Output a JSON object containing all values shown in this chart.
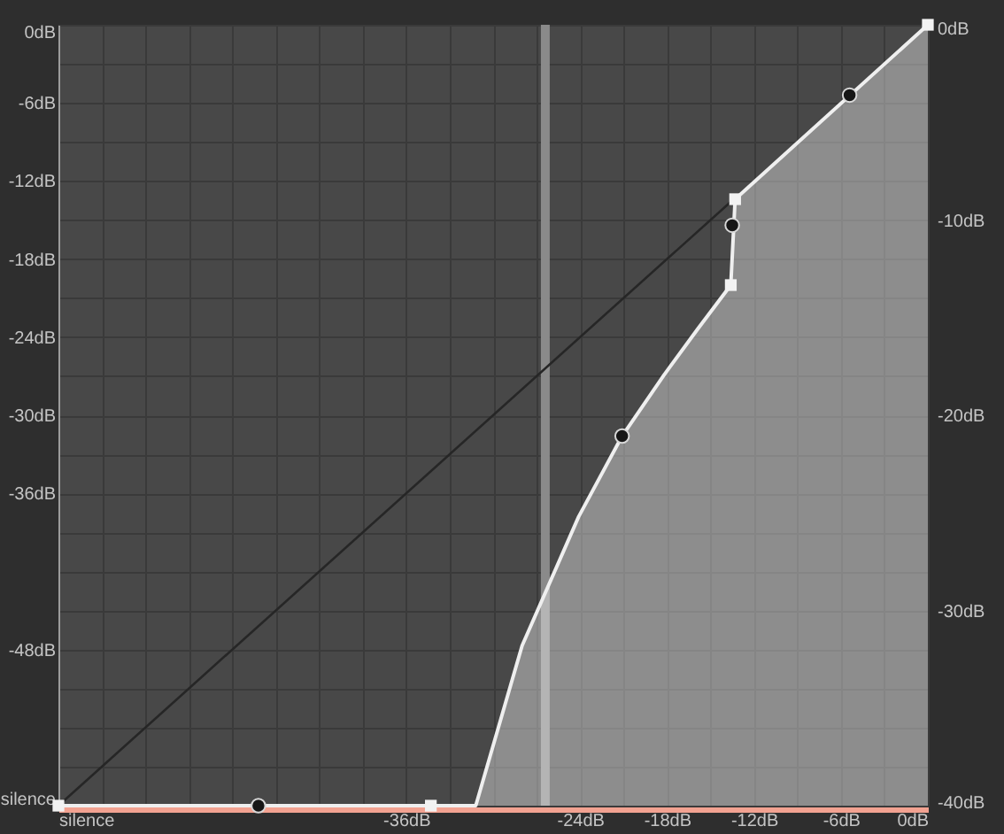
{
  "chart_data": {
    "type": "line",
    "x": [
      -60,
      -34.3,
      -31.2,
      -28.0,
      -24.1,
      -21.1,
      -18.2,
      -15.9,
      -13.6,
      -13.3,
      0
    ],
    "series": [
      {
        "x": [
          -60,
          -13.3
        ],
        "values": [
          -60,
          -13.3
        ],
        "color": "#262626",
        "marker": "none"
      },
      {
        "values": [
          -60,
          -60,
          -60,
          -47.7,
          -37.8,
          -31.6,
          -26.9,
          -23.4,
          -20.0,
          -13.4,
          0
        ],
        "lower": [
          -60,
          -60,
          -60,
          -60,
          -60,
          -60,
          -60,
          -60,
          -60,
          -60,
          -60
        ],
        "upper": [
          -60,
          -60,
          -60,
          -47.7,
          -37.8,
          -31.6,
          -26.9,
          -23.4,
          -20.0,
          -13.4,
          0
        ],
        "color": "#efefef",
        "marker": "none"
      },
      {
        "type": "scatter",
        "x": [
          -60,
          -34.3,
          -13.6,
          -13.3,
          0
        ],
        "values": [
          -60,
          -60,
          -20.0,
          -13.4,
          0
        ],
        "color": "#f2f2f2",
        "marker": "square"
      },
      {
        "type": "scatter",
        "x": [
          -46.2,
          -21.1,
          -13.5,
          -5.4
        ],
        "values": [
          -60,
          -31.6,
          -15.4,
          -5.4
        ],
        "color": "#161616",
        "marker": "circle"
      }
    ],
    "xlim": [
      -60,
      0
    ],
    "ylim": [
      -60,
      0
    ],
    "xticks": [
      {
        "value": -60,
        "label": "silence"
      },
      {
        "value": -57,
        "label": null
      },
      {
        "value": -54,
        "label": null
      },
      {
        "value": -51,
        "label": null
      },
      {
        "value": -48,
        "label": null
      },
      {
        "value": -45,
        "label": null
      },
      {
        "value": -42,
        "label": null
      },
      {
        "value": -39,
        "label": null
      },
      {
        "value": -36,
        "label": "-36dB"
      },
      {
        "value": -33,
        "label": null
      },
      {
        "value": -30,
        "label": null
      },
      {
        "value": -27,
        "label": null
      },
      {
        "value": -24,
        "label": "-24dB"
      },
      {
        "value": -21,
        "label": null
      },
      {
        "value": -18,
        "label": "-18dB"
      },
      {
        "value": -15,
        "label": null
      },
      {
        "value": -12,
        "label": "-12dB"
      },
      {
        "value": -9,
        "label": null
      },
      {
        "value": -6,
        "label": "-6dB"
      },
      {
        "value": -3,
        "label": null
      },
      {
        "value": 0,
        "label": "0dB"
      }
    ],
    "yticks": [
      {
        "value": -60,
        "label": "silence"
      },
      {
        "value": -57,
        "label": null
      },
      {
        "value": -54,
        "label": null
      },
      {
        "value": -51,
        "label": null
      },
      {
        "value": -48,
        "label": "-48dB"
      },
      {
        "value": -45,
        "label": null
      },
      {
        "value": -42,
        "label": null
      },
      {
        "value": -39,
        "label": null
      },
      {
        "value": -36,
        "label": "-36dB"
      },
      {
        "value": -33,
        "label": null
      },
      {
        "value": -30,
        "label": "-30dB"
      },
      {
        "value": -27,
        "label": null
      },
      {
        "value": -24,
        "label": "-24dB"
      },
      {
        "value": -21,
        "label": null
      },
      {
        "value": -18,
        "label": "-18dB"
      },
      {
        "value": -15,
        "label": null
      },
      {
        "value": -12,
        "label": "-12dB"
      },
      {
        "value": -9,
        "label": null
      },
      {
        "value": -6,
        "label": "-6dB"
      },
      {
        "value": -3,
        "label": null
      },
      {
        "value": 0,
        "label": "0dB"
      }
    ],
    "y2lim": [
      -40,
      0
    ],
    "y2ticks": [
      {
        "value": -40,
        "label": "-40dB"
      },
      {
        "value": -30,
        "label": "-30dB"
      },
      {
        "value": -20,
        "label": "-20dB"
      },
      {
        "value": -10,
        "label": "-10dB"
      },
      {
        "value": 0,
        "label": "0dB"
      }
    ],
    "ref_lines": [
      {
        "axis": "x",
        "value": -26.4,
        "color": "#8a8a8a"
      }
    ],
    "grid": true
  }
}
